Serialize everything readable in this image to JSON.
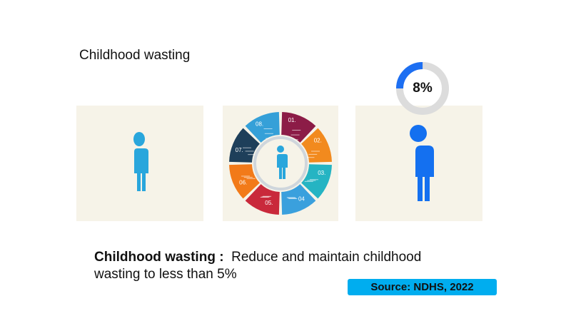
{
  "title": "Childhood wasting",
  "indicator": {
    "value_label": "8%",
    "value_fraction": 0.08,
    "ring_color": "#1d6ff2",
    "track_color": "#dcdcdc",
    "figure_color": "#1470f0"
  },
  "panels": {
    "left_figure_color": "#29a6dc",
    "wheel_segments": [
      {
        "label": "01.",
        "color": "#8c1c47"
      },
      {
        "label": "02.",
        "color": "#f28a1e"
      },
      {
        "label": "03.",
        "color": "#25b4c3"
      },
      {
        "label": "04",
        "color": "#3aa0dd"
      },
      {
        "label": "05.",
        "color": "#c9293b"
      },
      {
        "label": "06.",
        "color": "#f27a19"
      },
      {
        "label": "07.",
        "color": "#1e3f5a"
      },
      {
        "label": "08.",
        "color": "#35a0d8"
      }
    ]
  },
  "target": {
    "label": "Childhood wasting :",
    "text": "Reduce and maintain childhood wasting to less than 5%"
  },
  "source": "Source: NDHS, 2022"
}
